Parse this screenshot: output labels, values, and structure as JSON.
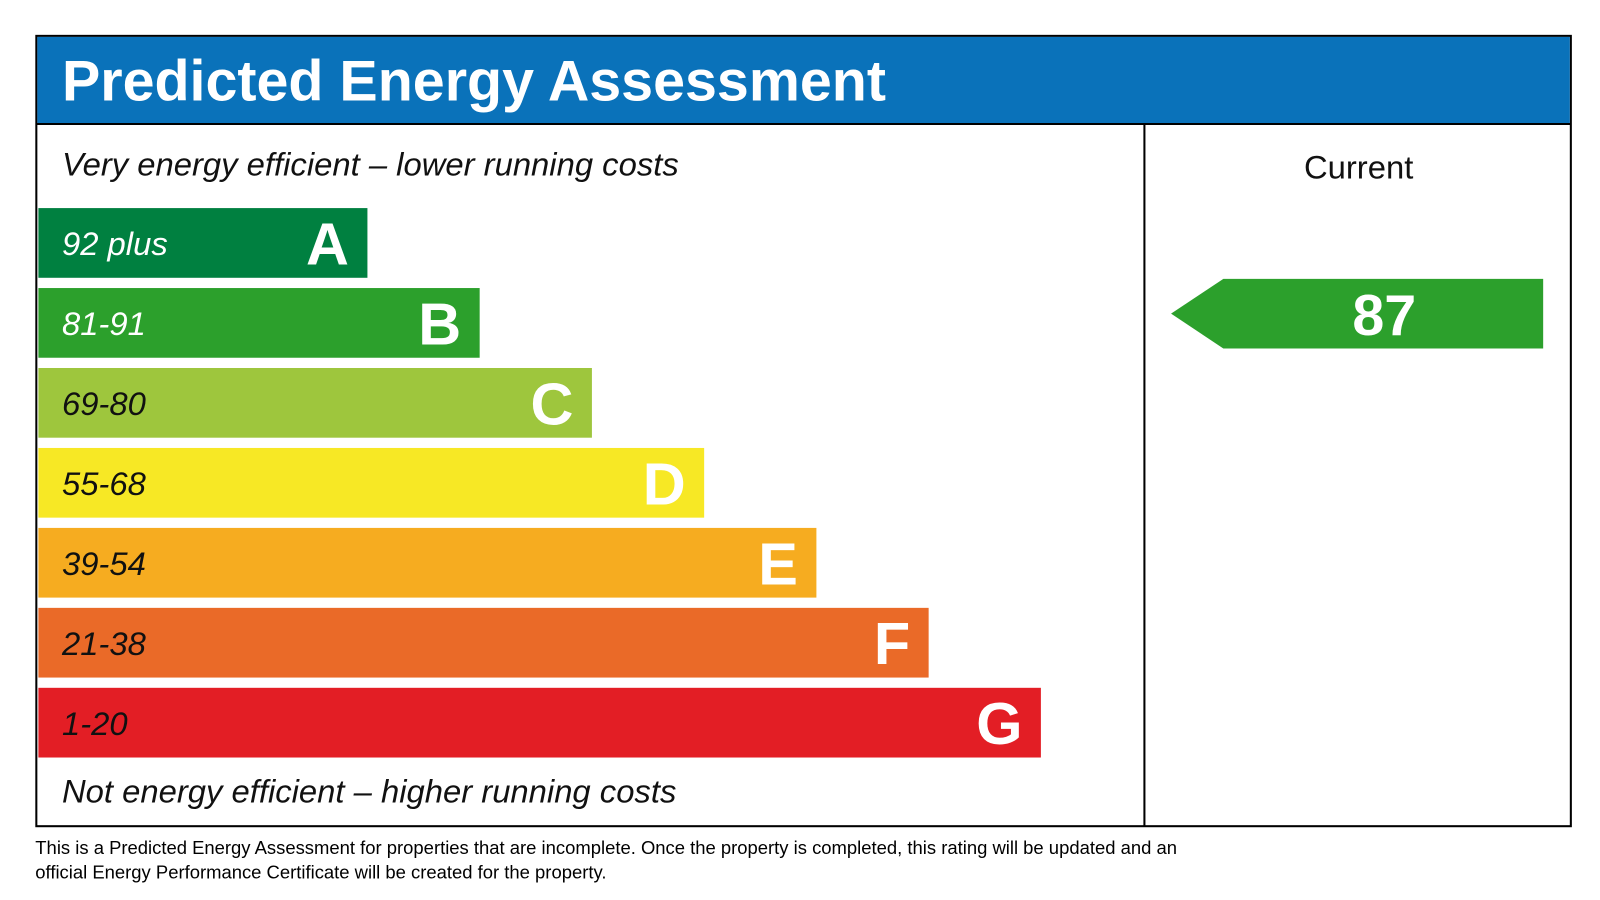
{
  "title": "Predicted Energy Assessment",
  "top_note": "Very energy efficient – lower running costs",
  "bottom_note": "Not energy efficient – higher running costs",
  "bands": [
    {
      "range": "92 plus",
      "letter": "A",
      "color": "#008040"
    },
    {
      "range": "81-91",
      "letter": "B",
      "color": "#2ca02c"
    },
    {
      "range": "69-80",
      "letter": "C",
      "color": "#9ec63d"
    },
    {
      "range": "55-68",
      "letter": "D",
      "color": "#f7e825"
    },
    {
      "range": "39-54",
      "letter": "E",
      "color": "#f6ac20"
    },
    {
      "range": "21-38",
      "letter": "F",
      "color": "#ea6a28"
    },
    {
      "range": "1-20",
      "letter": "G",
      "color": "#e31e25"
    }
  ],
  "current": {
    "label": "Current",
    "value": "87",
    "color": "#2ca02c"
  },
  "footnote": [
    "This is a Predicted Energy Assessment for properties that are incomplete. Once the property is completed, this rating will be updated and an",
    "official Energy Performance Certificate will be created for the property."
  ]
}
